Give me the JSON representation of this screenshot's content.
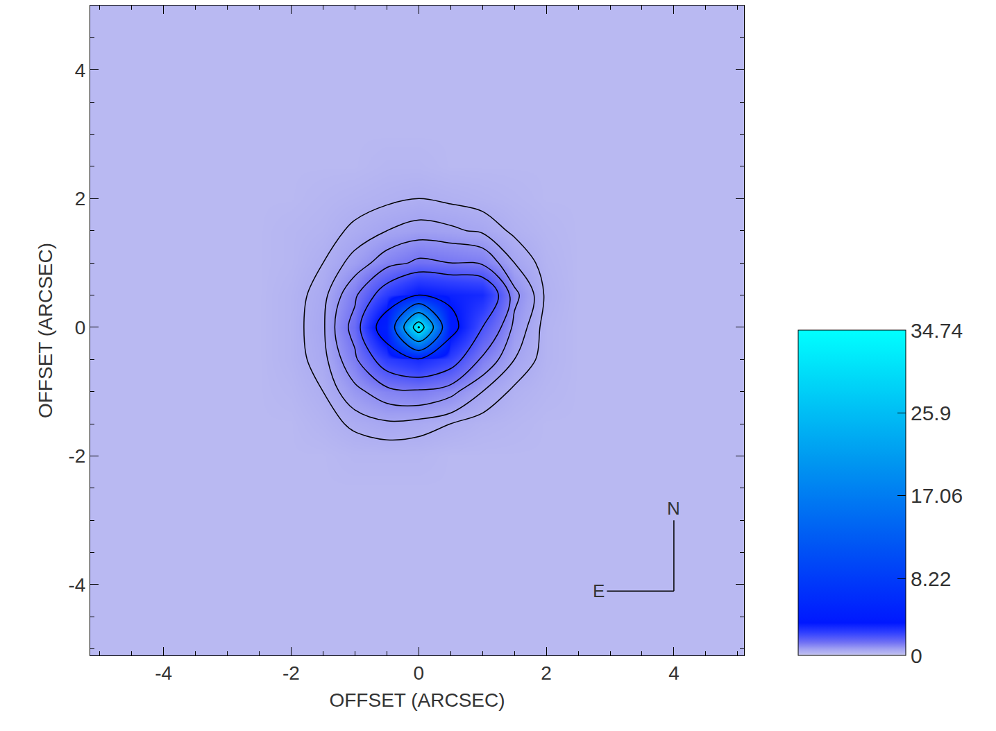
{
  "chart_data": {
    "type": "heatmap",
    "x_label": "OFFSET (ARCSEC)",
    "y_label": "OFFSET (ARCSEC)",
    "x": [
      -5,
      -4.5,
      -4,
      -3.5,
      -3,
      -2.5,
      -2,
      -1.5,
      -1,
      -0.5,
      0,
      0.5,
      1,
      1.5,
      2,
      2.5,
      3,
      3.5,
      4,
      4.5,
      5
    ],
    "y": [
      -5,
      -4.5,
      -4,
      -3.5,
      -3,
      -2.5,
      -2,
      -1.5,
      -1,
      -0.5,
      0,
      0.5,
      1,
      1.5,
      2,
      2.5,
      3,
      3.5,
      4,
      4.5,
      5
    ],
    "z": [
      [
        0.2,
        0.2,
        0.2,
        0.2,
        0.2,
        0.2,
        0.2,
        0.2,
        0.2,
        0.2,
        0.2,
        0.2,
        0.2,
        0.2,
        0.2,
        0.2,
        0.2,
        0.2,
        0.2,
        0.2,
        0.2
      ],
      [
        0.2,
        0.2,
        0.2,
        0.2,
        0.2,
        0.2,
        0.2,
        0.2,
        0.2,
        0.2,
        0.2,
        0.2,
        0.2,
        0.2,
        0.2,
        0.2,
        0.2,
        0.2,
        0.2,
        0.2,
        0.2
      ],
      [
        0.2,
        0.2,
        0.2,
        0.2,
        0.2,
        0.2,
        0.2,
        0.2,
        0.2,
        0.2,
        0.2,
        0.2,
        0.2,
        0.2,
        0.2,
        0.2,
        0.2,
        0.2,
        0.2,
        0.2,
        0.2
      ],
      [
        0.2,
        0.2,
        0.2,
        0.2,
        0.2,
        0.2,
        0.2,
        0.2,
        0.2,
        0.2,
        0.2,
        0.2,
        0.2,
        0.2,
        0.2,
        0.2,
        0.2,
        0.2,
        0.2,
        0.2,
        0.2
      ],
      [
        0.2,
        0.2,
        0.2,
        0.2,
        0.2,
        0.2,
        0.2,
        0.2,
        0.2,
        0.2,
        0.2,
        0.2,
        0.2,
        0.2,
        0.2,
        0.2,
        0.2,
        0.2,
        0.2,
        0.2,
        0.2
      ],
      [
        0.2,
        0.2,
        0.2,
        0.2,
        0.2,
        0.2,
        0.2,
        0.2,
        0.2,
        0.2,
        0.2,
        0.2,
        0.2,
        0.2,
        0.2,
        0.2,
        0.2,
        0.2,
        0.2,
        0.2,
        0.2
      ],
      [
        0.2,
        0.2,
        0.2,
        0.2,
        0.2,
        0.2,
        0.2,
        0.2,
        0.25,
        0.25,
        0.25,
        0.2,
        0.2,
        0.2,
        0.2,
        0.2,
        0.2,
        0.2,
        0.2,
        0.2,
        0.2
      ],
      [
        0.2,
        0.2,
        0.2,
        0.2,
        0.2,
        0.2,
        0.2,
        0.3,
        0.45,
        0.55,
        0.5,
        0.4,
        0.3,
        0.25,
        0.2,
        0.2,
        0.2,
        0.2,
        0.2,
        0.2,
        0.2
      ],
      [
        0.2,
        0.2,
        0.2,
        0.2,
        0.2,
        0.2,
        0.25,
        0.4,
        0.8,
        1.1,
        1.2,
        1.0,
        0.6,
        0.35,
        0.25,
        0.2,
        0.2,
        0.2,
        0.2,
        0.2,
        0.2
      ],
      [
        0.2,
        0.2,
        0.2,
        0.2,
        0.2,
        0.2,
        0.3,
        0.5,
        1.2,
        2.5,
        3.0,
        2.4,
        1.2,
        0.6,
        0.3,
        0.2,
        0.2,
        0.2,
        0.2,
        0.2,
        0.2
      ],
      [
        0.2,
        0.2,
        0.2,
        0.2,
        0.2,
        0.2,
        0.3,
        0.55,
        1.5,
        4.5,
        34.74,
        4.0,
        2.0,
        0.8,
        0.3,
        0.2,
        0.2,
        0.2,
        0.2,
        0.2,
        0.2
      ],
      [
        0.2,
        0.2,
        0.2,
        0.2,
        0.2,
        0.2,
        0.3,
        0.5,
        1.2,
        2.5,
        3.5,
        3.2,
        3.0,
        1.0,
        0.35,
        0.2,
        0.2,
        0.2,
        0.2,
        0.2,
        0.2
      ],
      [
        0.2,
        0.2,
        0.2,
        0.2,
        0.2,
        0.2,
        0.25,
        0.4,
        0.7,
        1.1,
        1.4,
        1.3,
        1.2,
        0.6,
        0.3,
        0.2,
        0.2,
        0.2,
        0.2,
        0.2,
        0.2
      ],
      [
        0.2,
        0.2,
        0.2,
        0.2,
        0.2,
        0.2,
        0.25,
        0.3,
        0.45,
        0.6,
        0.7,
        0.65,
        0.55,
        0.35,
        0.25,
        0.2,
        0.2,
        0.2,
        0.2,
        0.2,
        0.2
      ],
      [
        0.2,
        0.2,
        0.2,
        0.2,
        0.2,
        0.2,
        0.2,
        0.25,
        0.3,
        0.35,
        0.4,
        0.35,
        0.3,
        0.25,
        0.2,
        0.2,
        0.2,
        0.2,
        0.2,
        0.2,
        0.2
      ],
      [
        0.2,
        0.2,
        0.2,
        0.2,
        0.2,
        0.2,
        0.2,
        0.2,
        0.2,
        0.25,
        0.25,
        0.2,
        0.2,
        0.2,
        0.2,
        0.2,
        0.2,
        0.2,
        0.2,
        0.2,
        0.2
      ],
      [
        0.2,
        0.2,
        0.2,
        0.2,
        0.2,
        0.2,
        0.2,
        0.2,
        0.2,
        0.2,
        0.2,
        0.2,
        0.2,
        0.2,
        0.2,
        0.2,
        0.2,
        0.2,
        0.2,
        0.2,
        0.2
      ],
      [
        0.2,
        0.2,
        0.2,
        0.2,
        0.2,
        0.2,
        0.2,
        0.2,
        0.2,
        0.2,
        0.2,
        0.2,
        0.2,
        0.2,
        0.2,
        0.2,
        0.2,
        0.2,
        0.2,
        0.2,
        0.2
      ],
      [
        0.2,
        0.2,
        0.2,
        0.2,
        0.2,
        0.2,
        0.2,
        0.2,
        0.2,
        0.2,
        0.2,
        0.2,
        0.2,
        0.2,
        0.2,
        0.2,
        0.2,
        0.2,
        0.2,
        0.2,
        0.2
      ],
      [
        0.2,
        0.2,
        0.2,
        0.2,
        0.2,
        0.2,
        0.2,
        0.2,
        0.2,
        0.2,
        0.2,
        0.2,
        0.2,
        0.2,
        0.2,
        0.2,
        0.2,
        0.2,
        0.2,
        0.2,
        0.2
      ],
      [
        0.2,
        0.2,
        0.2,
        0.2,
        0.2,
        0.2,
        0.2,
        0.2,
        0.2,
        0.2,
        0.2,
        0.2,
        0.2,
        0.2,
        0.2,
        0.2,
        0.2,
        0.2,
        0.2,
        0.2,
        0.2
      ]
    ],
    "contour_levels": [
      0.4,
      0.6,
      0.9,
      1.3,
      2.0,
      3.5,
      11.8,
      20.6,
      29.5,
      34.1
    ],
    "xlim": [
      -5.15,
      5.1
    ],
    "ylim": [
      -5.1,
      5.0
    ],
    "xticks": [
      -4,
      -2,
      0,
      2,
      4
    ],
    "yticks": [
      -4,
      -2,
      0,
      2,
      4
    ],
    "colorbar": {
      "range": [
        0,
        34.74
      ],
      "ticks": [
        0,
        8.22,
        17.06,
        25.9,
        34.74
      ]
    },
    "compass": {
      "north": "N",
      "east": "E"
    }
  }
}
